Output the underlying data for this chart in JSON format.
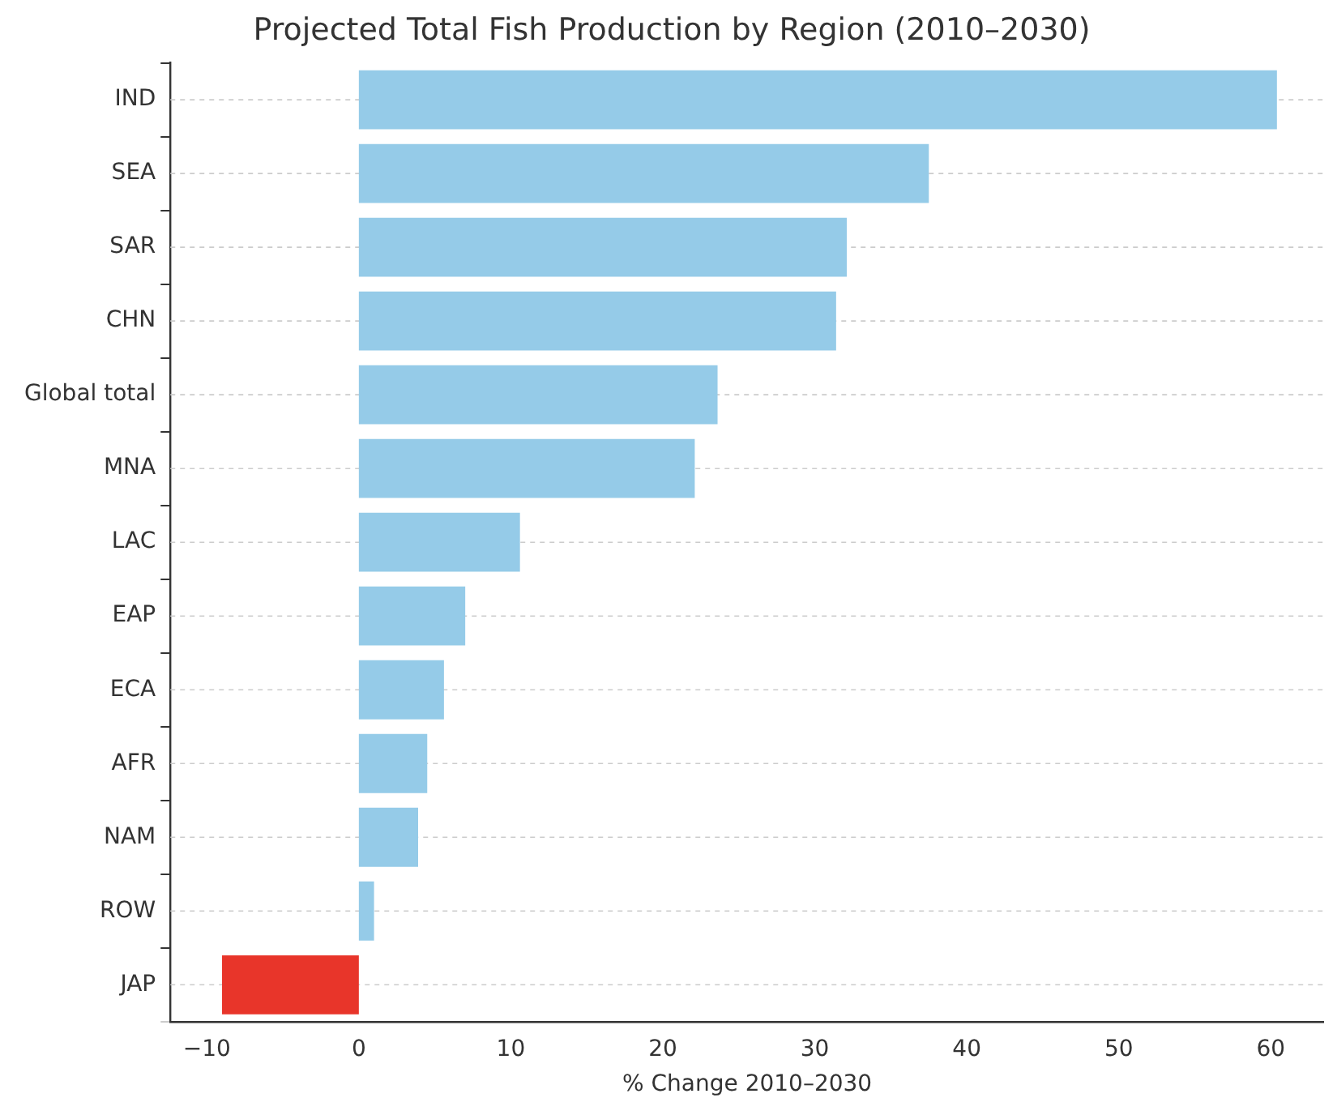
{
  "chart_data": {
    "type": "bar",
    "orientation": "horizontal",
    "title": "Projected Total Fish Production by Region (2010–2030)",
    "xlabel": "% Change 2010–2030",
    "categories": [
      "IND",
      "SEA",
      "SAR",
      "CHN",
      "Global total",
      "MNA",
      "LAC",
      "EAP",
      "ECA",
      "AFR",
      "NAM",
      "ROW",
      "JAP"
    ],
    "values": [
      60.4,
      37.5,
      32.1,
      31.4,
      23.6,
      22.1,
      10.6,
      7.0,
      5.6,
      4.5,
      3.9,
      1.0,
      -9.0
    ],
    "colors": [
      "#95cbe8",
      "#95cbe8",
      "#95cbe8",
      "#95cbe8",
      "#95cbe8",
      "#95cbe8",
      "#95cbe8",
      "#95cbe8",
      "#95cbe8",
      "#95cbe8",
      "#95cbe8",
      "#95cbe8",
      "#e8352a"
    ],
    "xlim": [
      -12.4,
      63.5
    ],
    "xticks": [
      {
        "value": -10,
        "label": "−10"
      },
      0,
      10,
      20,
      30,
      40,
      50,
      60
    ],
    "grid": "y"
  }
}
